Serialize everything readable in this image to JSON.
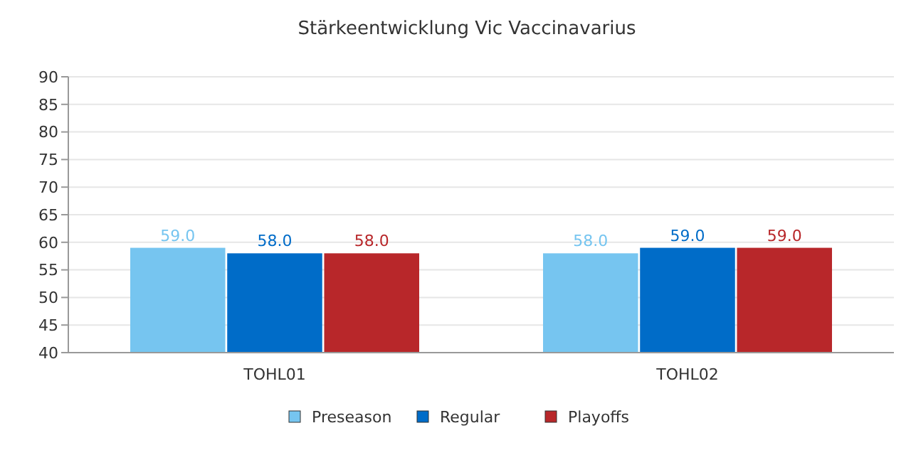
{
  "chart_data": {
    "type": "bar",
    "title": "Stärkeentwicklung Vic Vaccinavarius",
    "categories": [
      "TOHL01",
      "TOHL02"
    ],
    "series": [
      {
        "name": "Preseason",
        "color": "#76c5f0",
        "values": [
          59,
          58
        ],
        "value_labels": [
          "59.0",
          "58.0"
        ]
      },
      {
        "name": "Regular",
        "color": "#006cc8",
        "values": [
          58,
          59
        ],
        "value_labels": [
          "58.0",
          "59.0"
        ]
      },
      {
        "name": "Playoffs",
        "color": "#b8272a",
        "values": [
          58,
          59
        ],
        "value_labels": [
          "58.0",
          "59.0"
        ]
      }
    ],
    "ylim": [
      40,
      90
    ],
    "yticks": [
      40,
      45,
      50,
      55,
      60,
      65,
      70,
      75,
      80,
      85,
      90
    ],
    "grid": "y",
    "legend": "bottom"
  }
}
